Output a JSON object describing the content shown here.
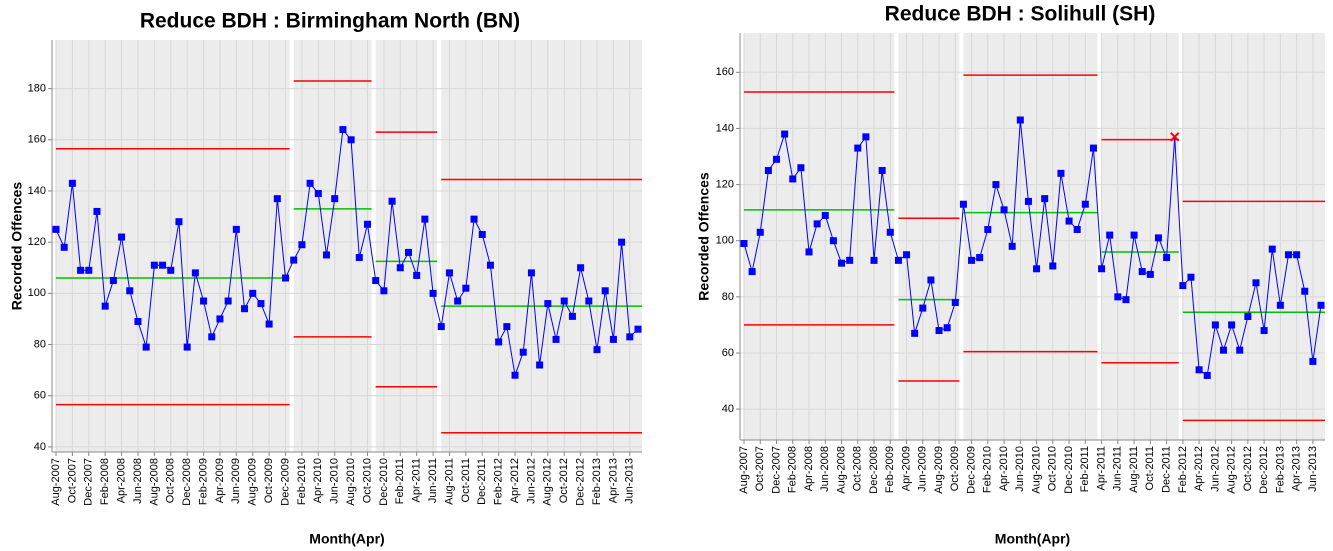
{
  "chart_data": [
    {
      "type": "line",
      "title": "Reduce BDH : Birmingham North (BN)",
      "x_label": "Month(Apr)",
      "y_label": "Recorded Offences",
      "categories": [
        "Aug-2007",
        null,
        "Oct-2007",
        null,
        "Dec-2007",
        null,
        "Feb-2008",
        null,
        "Apr-2008",
        null,
        "Jun-2008",
        null,
        "Aug-2008",
        null,
        "Oct-2008",
        null,
        "Dec-2008",
        null,
        "Feb-2009",
        null,
        "Apr-2009",
        null,
        "Jun-2009",
        null,
        "Aug-2009",
        null,
        "Oct-2009",
        null,
        "Dec-2009",
        null,
        "Feb-2010",
        null,
        "Apr-2010",
        null,
        "Jun-2010",
        null,
        "Aug-2010",
        null,
        "Oct-2010",
        null,
        "Dec-2010",
        null,
        "Feb-2011",
        null,
        "Apr-2011",
        null,
        "Jun-2011",
        null,
        "Aug-2011",
        null,
        "Oct-2011",
        null,
        "Dec-2011",
        null,
        "Feb-2012",
        null,
        "Apr-2012",
        null,
        "Jun-2012",
        null,
        "Aug-2012",
        null,
        "Oct-2012",
        null,
        "Dec-2012",
        null,
        "Feb-2013",
        null,
        "Apr-2013",
        null,
        "Jun-2013",
        null
      ],
      "ylim": [
        38,
        199
      ],
      "yticks": [
        40,
        60,
        80,
        100,
        120,
        140,
        160,
        180
      ],
      "grid": true,
      "line_color": "#0000ff",
      "mean_color": "#00c000",
      "limit_color": "#ff0000",
      "band_color": "#ececec",
      "signal_color": "#ff0000",
      "phases": [
        {
          "mean": 106,
          "ucl": 156.5,
          "lcl": 56.5,
          "values": [
            125,
            118,
            143,
            109,
            109,
            132,
            95,
            105,
            122,
            101,
            89,
            79,
            111,
            111,
            109,
            128,
            79,
            108,
            97,
            83,
            90,
            97,
            125,
            94,
            100,
            96,
            88,
            137,
            106
          ]
        },
        {
          "mean": 133,
          "ucl": 183,
          "lcl": 83,
          "values": [
            113,
            119,
            143,
            139,
            115,
            137,
            164,
            160,
            114,
            127
          ]
        },
        {
          "mean": 112.5,
          "ucl": 163,
          "lcl": 63.5,
          "values": [
            105,
            101,
            136,
            110,
            116,
            107,
            129,
            100
          ]
        },
        {
          "mean": 95,
          "ucl": 144.5,
          "lcl": 45.5,
          "values": [
            87,
            108,
            97,
            102,
            129,
            123,
            111,
            81,
            87,
            68,
            77,
            108,
            72,
            96,
            82,
            97,
            91,
            110,
            97,
            78,
            101,
            82,
            120,
            83,
            86
          ]
        }
      ]
    },
    {
      "type": "line",
      "title": "Reduce BDH : Solihull (SH)",
      "x_label": "Month(Apr)",
      "y_label": "Recorded Offences",
      "categories": [
        "Aug-2007",
        null,
        "Oct-2007",
        null,
        "Dec-2007",
        null,
        "Feb-2008",
        null,
        "Apr-2008",
        null,
        "Jun-2008",
        null,
        "Aug-2008",
        null,
        "Oct-2008",
        null,
        "Dec-2008",
        null,
        "Feb-2009",
        null,
        "Apr-2009",
        null,
        "Jun-2009",
        null,
        "Aug-2009",
        null,
        "Oct-2009",
        null,
        "Dec-2009",
        null,
        "Feb-2010",
        null,
        "Apr-2010",
        null,
        "Jun-2010",
        null,
        "Aug-2010",
        null,
        "Oct-2010",
        null,
        "Dec-2010",
        null,
        "Feb-2011",
        null,
        "Apr-2011",
        null,
        "Jun-2011",
        null,
        "Aug-2011",
        null,
        "Oct-2011",
        null,
        "Dec-2011",
        null,
        "Feb-2012",
        null,
        "Apr-2012",
        null,
        "Jun-2012",
        null,
        "Aug-2012",
        null,
        "Oct-2012",
        null,
        "Dec-2012",
        null,
        "Feb-2013",
        null,
        "Apr-2013",
        null,
        "Jun-2013",
        null
      ],
      "ylim": [
        29,
        174
      ],
      "yticks": [
        40,
        60,
        80,
        100,
        120,
        140,
        160
      ],
      "grid": true,
      "line_color": "#0000ff",
      "mean_color": "#00c000",
      "limit_color": "#ff0000",
      "band_color": "#ececec",
      "signal_color": "#ff0000",
      "phases": [
        {
          "mean": 111,
          "ucl": 153,
          "lcl": 70,
          "values": [
            99,
            89,
            103,
            125,
            129,
            138,
            122,
            126,
            96,
            106,
            109,
            100,
            92,
            93,
            133,
            137,
            93,
            125,
            103
          ]
        },
        {
          "mean": 79,
          "ucl": 108,
          "lcl": 50,
          "values": [
            93,
            95,
            67,
            76,
            86,
            68,
            69,
            78
          ]
        },
        {
          "mean": 110,
          "ucl": 159,
          "lcl": 60.5,
          "values": [
            113,
            93,
            94,
            104,
            120,
            111,
            98,
            143,
            114,
            90,
            115,
            91,
            124,
            107,
            104,
            113,
            133
          ]
        },
        {
          "mean": 96,
          "ucl": 136,
          "lcl": 56.5,
          "values": [
            90,
            102,
            80,
            79,
            102,
            89,
            88,
            101,
            94,
            137
          ]
        },
        {
          "mean": 74.5,
          "ucl": 114,
          "lcl": 36,
          "values": [
            84,
            87,
            54,
            52,
            70,
            61,
            70,
            61,
            73,
            85,
            68,
            97,
            77,
            95,
            95,
            82,
            57,
            77
          ]
        }
      ]
    }
  ]
}
